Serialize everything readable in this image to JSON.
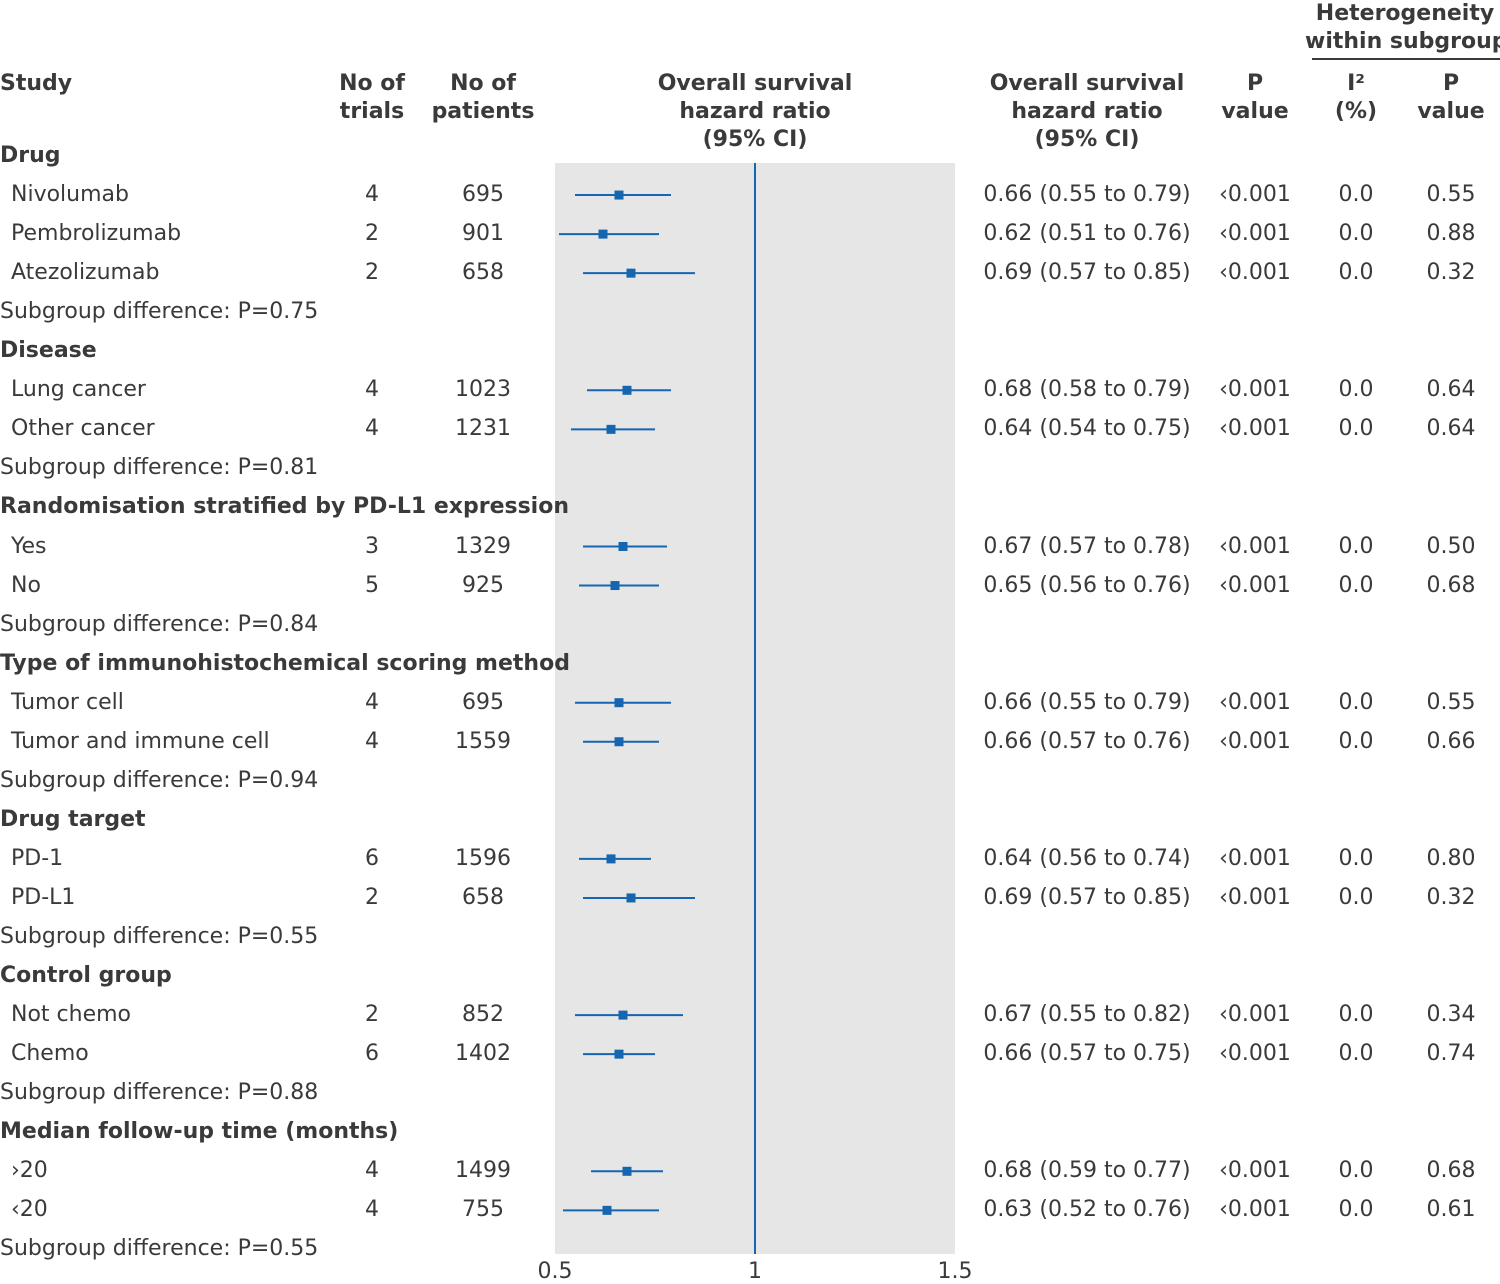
{
  "headers": {
    "study": "Study",
    "trials": [
      "No of",
      "trials"
    ],
    "patients": [
      "No of",
      "patients"
    ],
    "plot": [
      "Overall survival",
      "hazard ratio",
      "(95% CI)"
    ],
    "hr": [
      "Overall survival",
      "hazard ratio",
      "(95% CI)"
    ],
    "p": [
      "P",
      "value"
    ],
    "heterogeneity": [
      "Heterogeneity",
      "within subgroups"
    ],
    "i2": [
      "I²",
      "(%)"
    ],
    "het_p": [
      "P",
      "value"
    ]
  },
  "colors": {
    "marker": "#1565b0",
    "plot_band": "#e6e6e6",
    "text": "#3a3a3a"
  },
  "chart_data": {
    "type": "forest",
    "xlim": [
      0.5,
      1.5
    ],
    "x_ticks": [
      "0.5",
      "1",
      "1.5"
    ],
    "reference_line": 1,
    "groups": [
      {
        "name": "Drug",
        "rows": [
          {
            "label": "Nivolumab",
            "trials": "4",
            "patients": "695",
            "hr": 0.66,
            "lo": 0.55,
            "hi": 0.79,
            "ci_text": "0.66 (0.55 to 0.79)",
            "p": "‹0.001",
            "i2": "0.0",
            "het_p": "0.55"
          },
          {
            "label": "Pembrolizumab",
            "trials": "2",
            "patients": "901",
            "hr": 0.62,
            "lo": 0.51,
            "hi": 0.76,
            "ci_text": "0.62 (0.51 to 0.76)",
            "p": "‹0.001",
            "i2": "0.0",
            "het_p": "0.88"
          },
          {
            "label": "Atezolizumab",
            "trials": "2",
            "patients": "658",
            "hr": 0.69,
            "lo": 0.57,
            "hi": 0.85,
            "ci_text": "0.69 (0.57 to 0.85)",
            "p": "‹0.001",
            "i2": "0.0",
            "het_p": "0.32"
          }
        ],
        "subgroup_difference": "Subgroup difference: P=0.75"
      },
      {
        "name": "Disease",
        "rows": [
          {
            "label": "Lung cancer",
            "trials": "4",
            "patients": "1023",
            "hr": 0.68,
            "lo": 0.58,
            "hi": 0.79,
            "ci_text": "0.68 (0.58 to 0.79)",
            "p": "‹0.001",
            "i2": "0.0",
            "het_p": "0.64"
          },
          {
            "label": "Other cancer",
            "trials": "4",
            "patients": "1231",
            "hr": 0.64,
            "lo": 0.54,
            "hi": 0.75,
            "ci_text": "0.64 (0.54 to 0.75)",
            "p": "‹0.001",
            "i2": "0.0",
            "het_p": "0.64"
          }
        ],
        "subgroup_difference": "Subgroup difference: P=0.81"
      },
      {
        "name": "Randomisation stratified by PD-L1 expression",
        "rows": [
          {
            "label": "Yes",
            "trials": "3",
            "patients": "1329",
            "hr": 0.67,
            "lo": 0.57,
            "hi": 0.78,
            "ci_text": "0.67 (0.57 to 0.78)",
            "p": "‹0.001",
            "i2": "0.0",
            "het_p": "0.50"
          },
          {
            "label": "No",
            "trials": "5",
            "patients": "925",
            "hr": 0.65,
            "lo": 0.56,
            "hi": 0.76,
            "ci_text": "0.65 (0.56 to 0.76)",
            "p": "‹0.001",
            "i2": "0.0",
            "het_p": "0.68"
          }
        ],
        "subgroup_difference": "Subgroup difference: P=0.84"
      },
      {
        "name": "Type of immunohistochemical scoring method",
        "rows": [
          {
            "label": "Tumor cell",
            "trials": "4",
            "patients": "695",
            "hr": 0.66,
            "lo": 0.55,
            "hi": 0.79,
            "ci_text": "0.66 (0.55 to 0.79)",
            "p": "‹0.001",
            "i2": "0.0",
            "het_p": "0.55"
          },
          {
            "label": "Tumor and immune cell",
            "trials": "4",
            "patients": "1559",
            "hr": 0.66,
            "lo": 0.57,
            "hi": 0.76,
            "ci_text": "0.66 (0.57 to 0.76)",
            "p": "‹0.001",
            "i2": "0.0",
            "het_p": "0.66"
          }
        ],
        "subgroup_difference": "Subgroup difference: P=0.94"
      },
      {
        "name": "Drug target",
        "rows": [
          {
            "label": "PD-1",
            "trials": "6",
            "patients": "1596",
            "hr": 0.64,
            "lo": 0.56,
            "hi": 0.74,
            "ci_text": "0.64 (0.56 to 0.74)",
            "p": "‹0.001",
            "i2": "0.0",
            "het_p": "0.80"
          },
          {
            "label": "PD-L1",
            "trials": "2",
            "patients": "658",
            "hr": 0.69,
            "lo": 0.57,
            "hi": 0.85,
            "ci_text": "0.69 (0.57 to 0.85)",
            "p": "‹0.001",
            "i2": "0.0",
            "het_p": "0.32"
          }
        ],
        "subgroup_difference": "Subgroup difference: P=0.55"
      },
      {
        "name": "Control group",
        "rows": [
          {
            "label": "Not chemo",
            "trials": "2",
            "patients": "852",
            "hr": 0.67,
            "lo": 0.55,
            "hi": 0.82,
            "ci_text": "0.67 (0.55 to 0.82)",
            "p": "‹0.001",
            "i2": "0.0",
            "het_p": "0.34"
          },
          {
            "label": "Chemo",
            "trials": "6",
            "patients": "1402",
            "hr": 0.66,
            "lo": 0.57,
            "hi": 0.75,
            "ci_text": "0.66 (0.57 to 0.75)",
            "p": "‹0.001",
            "i2": "0.0",
            "het_p": "0.74"
          }
        ],
        "subgroup_difference": "Subgroup difference: P=0.88"
      },
      {
        "name": "Median follow-up time (months)",
        "rows": [
          {
            "label": "›20",
            "trials": "4",
            "patients": "1499",
            "hr": 0.68,
            "lo": 0.59,
            "hi": 0.77,
            "ci_text": "0.68 (0.59 to 0.77)",
            "p": "‹0.001",
            "i2": "0.0",
            "het_p": "0.68"
          },
          {
            "label": "‹20",
            "trials": "4",
            "patients": "755",
            "hr": 0.63,
            "lo": 0.52,
            "hi": 0.76,
            "ci_text": "0.63 (0.52 to 0.76)",
            "p": "‹0.001",
            "i2": "0.0",
            "het_p": "0.61"
          }
        ],
        "subgroup_difference": "Subgroup difference: P=0.55"
      }
    ]
  }
}
